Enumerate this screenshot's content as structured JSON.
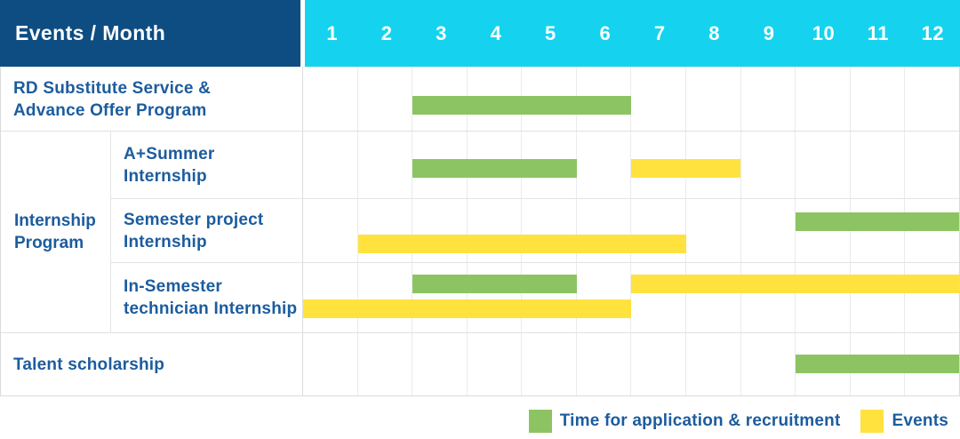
{
  "header": {
    "title": "Events / Month",
    "months": [
      "1",
      "2",
      "3",
      "4",
      "5",
      "6",
      "7",
      "8",
      "9",
      "10",
      "11",
      "12"
    ]
  },
  "row_labels": {
    "rd": {
      "line1": "RD Substitute Service &",
      "line2": "Advance Offer Program"
    },
    "group": {
      "line1": "Internship",
      "line2": "Program"
    },
    "a_summer": {
      "line1": "A+Summer",
      "line2": "Internship"
    },
    "semester_project": {
      "line1": "Semester project",
      "line2": "Internship"
    },
    "in_semester": {
      "line1": "In-Semester",
      "line2": "technician Internship"
    },
    "talent": "Talent scholarship"
  },
  "legend": {
    "items": [
      {
        "label": "Time for application & recruitment",
        "color": "#8cc463"
      },
      {
        "label": "Events",
        "color": "#ffe23e"
      }
    ]
  },
  "colors": {
    "header_bg": "#0e4d82",
    "months_bg": "#15d3ee",
    "label_text": "#1c5c9e",
    "green": "#8cc463",
    "yellow": "#ffe23e"
  },
  "chart_data": {
    "type": "bar",
    "subtype": "gantt",
    "title": "Events / Month",
    "x_axis": {
      "label": "Month",
      "ticks": [
        1,
        2,
        3,
        4,
        5,
        6,
        7,
        8,
        9,
        10,
        11,
        12
      ],
      "range": [
        1,
        12
      ]
    },
    "grid": true,
    "legend_position": "bottom-right",
    "series_colors": {
      "Time for application & recruitment": "#8cc463",
      "Events": "#ffe23e"
    },
    "rows": [
      {
        "group": null,
        "label": "RD Substitute Service & Advance Offer Program",
        "bars": [
          {
            "series": "Time for application & recruitment",
            "start_month": 3,
            "end_month": 6,
            "lane": 0
          }
        ]
      },
      {
        "group": "Internship Program",
        "label": "A+Summer Internship",
        "bars": [
          {
            "series": "Time for application & recruitment",
            "start_month": 3,
            "end_month": 5,
            "lane": 0
          },
          {
            "series": "Events",
            "start_month": 7,
            "end_month": 8,
            "lane": 0
          }
        ]
      },
      {
        "group": "Internship Program",
        "label": "Semester project Internship",
        "bars": [
          {
            "series": "Time for application & recruitment",
            "start_month": 10,
            "end_month": 12,
            "lane": 0
          },
          {
            "series": "Events",
            "start_month": 2,
            "end_month": 7,
            "lane": 1
          }
        ]
      },
      {
        "group": "Internship Program",
        "label": "In-Semester technician Internship",
        "bars": [
          {
            "series": "Time for application & recruitment",
            "start_month": 3,
            "end_month": 5,
            "lane": 0
          },
          {
            "series": "Events",
            "start_month": 7,
            "end_month": 12,
            "lane": 0
          },
          {
            "series": "Events",
            "start_month": 1,
            "end_month": 6,
            "lane": 1
          }
        ]
      },
      {
        "group": null,
        "label": "Talent scholarship",
        "bars": [
          {
            "series": "Time for application & recruitment",
            "start_month": 10,
            "end_month": 12,
            "lane": 0
          }
        ]
      }
    ]
  }
}
